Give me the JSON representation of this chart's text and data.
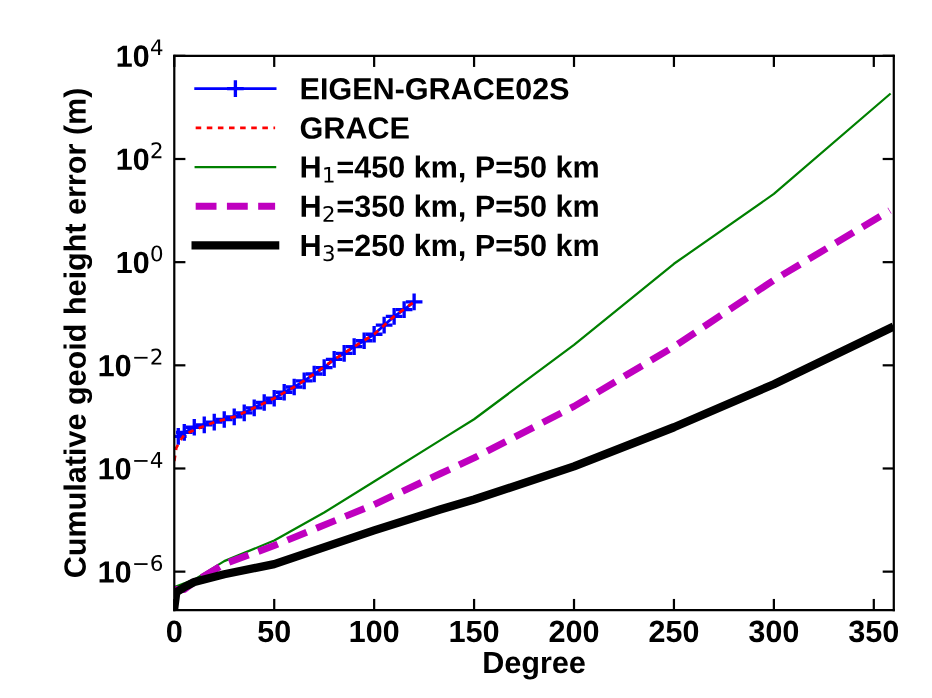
{
  "chart_data": {
    "type": "line",
    "xlabel": "Degree",
    "ylabel": "Cumulative geoid height error (m)",
    "log": "y",
    "xlim": [
      0,
      360
    ],
    "xticks": [
      0,
      50,
      100,
      150,
      200,
      250,
      300,
      350
    ],
    "ylim": [
      1.8e-07,
      10000
    ],
    "yticks": [
      {
        "value": 1e-06,
        "label": "10$^{−6}$"
      },
      {
        "value": 0.0001,
        "label": "10$^{−4}$"
      },
      {
        "value": 0.01,
        "label": "10$^{−2}$"
      },
      {
        "value": 1,
        "label": "10$^{0}$"
      },
      {
        "value": 100,
        "label": "10$^{2}$"
      },
      {
        "value": 10000,
        "label": "10$^{4}$"
      }
    ],
    "grid": false,
    "legend": "top left",
    "series": [
      {
        "name": "EIGEN-GRACE02S",
        "color": "#0000ff",
        "marker": "cross",
        "line_style": "solid",
        "x": [
          2,
          5,
          10,
          15,
          20,
          25,
          30,
          35,
          40,
          45,
          50,
          55,
          60,
          65,
          70,
          75,
          80,
          85,
          90,
          95,
          100,
          105,
          110,
          115,
          120
        ],
        "values": [
          0.00042,
          0.0005,
          0.00063,
          0.0007,
          0.00079,
          0.00089,
          0.001,
          0.0012,
          0.0015,
          0.0019,
          0.0023,
          0.003,
          0.0038,
          0.005,
          0.0068,
          0.009,
          0.013,
          0.017,
          0.023,
          0.03,
          0.04,
          0.06,
          0.089,
          0.12,
          0.17
        ]
      },
      {
        "name": "GRACE",
        "color": "#ff0000",
        "marker": "none",
        "line_style": "dashed",
        "x": [
          0,
          1,
          3,
          5,
          10,
          20,
          30,
          40,
          50,
          60,
          70,
          80,
          90,
          100,
          110,
          120
        ],
        "values": [
          0.00014,
          0.00025,
          0.00035,
          0.00045,
          0.00056,
          0.00079,
          0.001,
          0.0015,
          0.0023,
          0.0038,
          0.0068,
          0.013,
          0.023,
          0.04,
          0.089,
          0.17
        ]
      },
      {
        "name": "H$_{1}$=450 km, P=50 km",
        "color": "#008000",
        "marker": "none",
        "line_style": "solid",
        "x": [
          0,
          10,
          25,
          50,
          75,
          100,
          133,
          150,
          200,
          250,
          300,
          358
        ],
        "values": [
          5e-07,
          7e-07,
          1.6e-06,
          4e-06,
          1.4e-05,
          5.6e-05,
          0.00035,
          0.0009,
          0.025,
          0.93,
          21,
          1800
        ]
      },
      {
        "name": "H$_{2}$=350 km, P=50 km",
        "color": "#bf00bf",
        "marker": "none",
        "line_style": "dashed",
        "x": [
          0,
          5,
          10,
          25,
          50,
          100,
          133,
          150,
          200,
          250,
          300,
          358
        ],
        "values": [
          4.5e-07,
          4.5e-07,
          6.3e-07,
          1.4e-06,
          3.2e-06,
          2e-05,
          7.9e-05,
          0.00016,
          0.0016,
          0.023,
          0.45,
          10
        ]
      },
      {
        "name": "H$_{3}$=250 km, P=50 km",
        "color": "#000000",
        "marker": "none",
        "line_style": "solid",
        "x": [
          0,
          1,
          5,
          10,
          25,
          50,
          100,
          133,
          150,
          200,
          250,
          300,
          358
        ],
        "values": [
          2e-07,
          4e-07,
          5e-07,
          6.3e-07,
          8.9e-07,
          1.4e-06,
          6.3e-06,
          1.6e-05,
          2.5e-05,
          0.00011,
          0.00063,
          0.0043,
          0.052
        ]
      }
    ]
  }
}
